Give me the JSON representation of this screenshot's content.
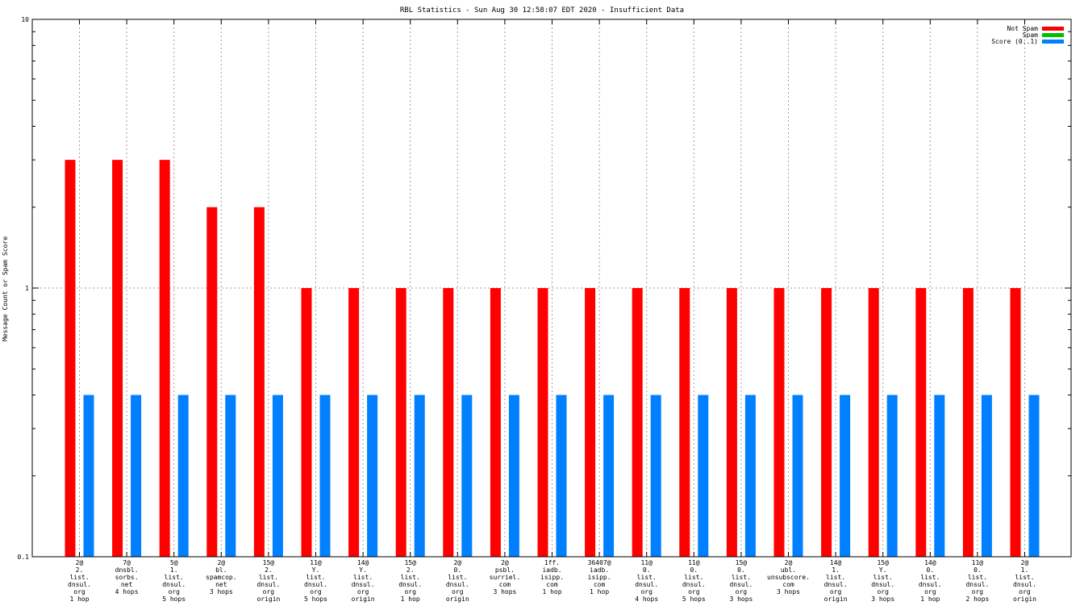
{
  "chart_data": {
    "type": "bar",
    "title": "RBL Statistics - Sun Aug 30 12:58:07 EDT 2020 - Insufficient Data",
    "ylabel": "Message Count or Spam Score",
    "xlabel": "",
    "yscale": "log",
    "ylim": [
      0.1,
      10
    ],
    "yticks": [
      {
        "value": 0.1,
        "label": "0.1"
      },
      {
        "value": 1,
        "label": "1"
      },
      {
        "value": 10,
        "label": "10"
      }
    ],
    "grid": true,
    "legend_position": "top-right",
    "categories": [
      [
        "2@",
        "2.",
        "list.",
        "dnsul.",
        "org",
        "1 hop"
      ],
      [
        "7@",
        "dnsbl.",
        "sorbs.",
        "net",
        "4 hops"
      ],
      [
        "5@",
        "1.",
        "list.",
        "dnsul.",
        "org",
        "5 hops"
      ],
      [
        "2@",
        "bl.",
        "spamcop.",
        "net",
        "3 hops"
      ],
      [
        "15@",
        "2.",
        "list.",
        "dnsul.",
        "org",
        "origin"
      ],
      [
        "11@",
        "Y.",
        "list.",
        "dnsul.",
        "org",
        "5 hops"
      ],
      [
        "14@",
        "Y.",
        "list.",
        "dnsul.",
        "org",
        "origin"
      ],
      [
        "15@",
        "2.",
        "list.",
        "dnsul.",
        "org",
        "1 hop"
      ],
      [
        "2@",
        "0.",
        "list.",
        "dnsul.",
        "org",
        "origin"
      ],
      [
        "2@",
        "psbl.",
        "surriel.",
        "com",
        "3 hops"
      ],
      [
        "1ff.",
        "iadb.",
        "isipp.",
        "com",
        "1 hop"
      ],
      [
        "36407@",
        "iadb.",
        "isipp.",
        "com",
        "1 hop"
      ],
      [
        "11@",
        "0.",
        "list.",
        "dnsul.",
        "org",
        "4 hops"
      ],
      [
        "11@",
        "0.",
        "list.",
        "dnsul.",
        "org",
        "5 hops"
      ],
      [
        "15@",
        "0.",
        "list.",
        "dnsul.",
        "org",
        "3 hops"
      ],
      [
        "2@",
        "ubl.",
        "unsubscore.",
        "com",
        "3 hops"
      ],
      [
        "14@",
        "1.",
        "list.",
        "dnsul.",
        "org",
        "origin"
      ],
      [
        "15@",
        "Y.",
        "list.",
        "dnsul.",
        "org",
        "3 hops"
      ],
      [
        "14@",
        "0.",
        "list.",
        "dnsul.",
        "org",
        "1 hop"
      ],
      [
        "11@",
        "0.",
        "list.",
        "dnsul.",
        "org",
        "2 hops"
      ],
      [
        "2@",
        "1.",
        "list.",
        "dnsul.",
        "org",
        "origin"
      ]
    ],
    "series": [
      {
        "name": "Not Spam",
        "color": "#ff0000",
        "values": [
          3,
          3,
          3,
          2,
          2,
          1,
          1,
          1,
          1,
          1,
          1,
          1,
          1,
          1,
          1,
          1,
          1,
          1,
          1,
          1,
          1
        ]
      },
      {
        "name": "Spam",
        "color": "#00c000",
        "values": [
          0,
          0,
          0,
          0,
          0,
          0,
          0,
          0,
          0,
          0,
          0,
          0,
          0,
          0,
          0,
          0,
          0,
          0,
          0,
          0,
          0
        ]
      },
      {
        "name": "Score (0..1)",
        "color": "#0080ff",
        "values": [
          0.4,
          0.4,
          0.4,
          0.4,
          0.4,
          0.4,
          0.4,
          0.4,
          0.4,
          0.4,
          0.4,
          0.4,
          0.4,
          0.4,
          0.4,
          0.4,
          0.4,
          0.4,
          0.4,
          0.4,
          0.4
        ]
      }
    ]
  }
}
